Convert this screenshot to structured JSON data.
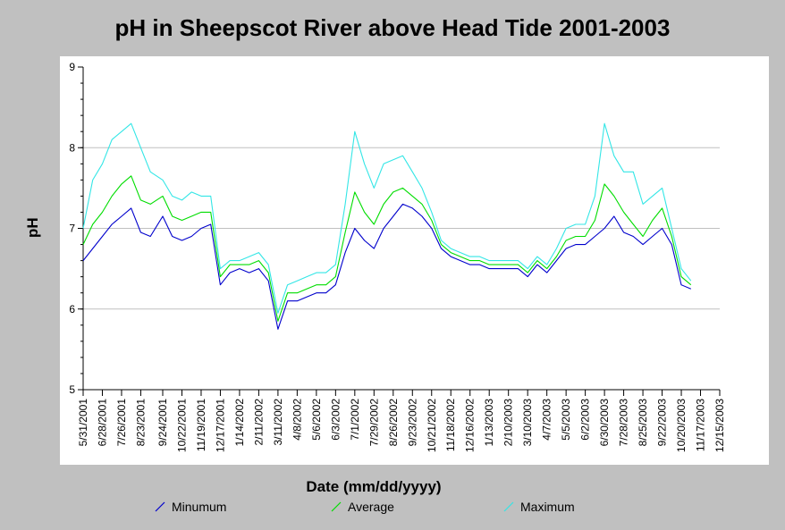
{
  "chart_data": {
    "type": "line",
    "title": "pH in Sheepscot River above Head Tide 2001-2003",
    "xlabel": "Date (mm/dd/yyyy)",
    "ylabel": "pH",
    "ylim": [
      5,
      9
    ],
    "yticks": [
      "5",
      "6",
      "7",
      "8",
      "9"
    ],
    "xlim": [
      "5/31/2001",
      "12/15/2003"
    ],
    "xticks": [
      "5/31/2001",
      "6/28/2001",
      "7/26/2001",
      "8/23/2001",
      "9/24/2001",
      "10/22/2001",
      "11/19/2001",
      "12/17/2001",
      "1/14/2002",
      "2/11/2002",
      "3/11/2002",
      "4/8/2002",
      "5/6/2002",
      "6/3/2002",
      "7/1/2002",
      "7/29/2002",
      "8/26/2002",
      "9/23/2002",
      "10/21/2002",
      "11/18/2002",
      "12/16/2002",
      "1/13/2003",
      "2/10/2003",
      "3/10/2003",
      "4/7/2003",
      "5/5/2003",
      "6/2/2003",
      "6/30/2003",
      "7/28/2003",
      "8/25/2003",
      "9/22/2003",
      "10/20/2003",
      "11/17/2003",
      "12/15/2003"
    ],
    "grid": "horizontal",
    "legend_position": "bottom",
    "series": [
      {
        "name": "Minumum",
        "color": "#0000cc",
        "x": [
          "5/31/2001",
          "6/14/2001",
          "6/28/2001",
          "7/12/2001",
          "7/26/2001",
          "8/9/2001",
          "8/23/2001",
          "9/6/2001",
          "9/24/2001",
          "10/8/2001",
          "10/22/2001",
          "11/5/2001",
          "11/19/2001",
          "12/3/2001",
          "12/17/2001",
          "12/31/2001",
          "1/14/2002",
          "1/28/2002",
          "2/11/2002",
          "2/25/2002",
          "3/11/2002",
          "3/25/2002",
          "4/8/2002",
          "4/22/2002",
          "5/6/2002",
          "5/20/2002",
          "6/3/2002",
          "6/17/2002",
          "7/1/2002",
          "7/15/2002",
          "7/29/2002",
          "8/12/2002",
          "8/26/2002",
          "9/9/2002",
          "9/23/2002",
          "10/7/2002",
          "10/21/2002",
          "11/4/2002",
          "11/18/2002",
          "12/2/2002",
          "12/16/2002",
          "12/30/2002",
          "1/13/2003",
          "1/27/2003",
          "2/10/2003",
          "2/24/2003",
          "3/10/2003",
          "3/24/2003",
          "4/7/2003",
          "4/21/2003",
          "5/5/2003",
          "5/19/2003",
          "6/2/2003",
          "6/16/2003",
          "6/30/2003",
          "7/14/2003",
          "7/28/2003",
          "8/11/2003",
          "8/25/2003",
          "9/8/2003",
          "9/22/2003",
          "10/6/2003",
          "10/20/2003",
          "11/3/2003"
        ],
        "y": [
          6.6,
          6.75,
          6.9,
          7.05,
          7.15,
          7.25,
          6.95,
          6.9,
          7.15,
          6.9,
          6.85,
          6.9,
          7.0,
          7.05,
          6.3,
          6.45,
          6.5,
          6.45,
          6.5,
          6.35,
          5.75,
          6.1,
          6.1,
          6.15,
          6.2,
          6.2,
          6.3,
          6.7,
          7.0,
          6.85,
          6.75,
          7.0,
          7.15,
          7.3,
          7.25,
          7.15,
          7.0,
          6.75,
          6.65,
          6.6,
          6.55,
          6.55,
          6.5,
          6.5,
          6.5,
          6.5,
          6.4,
          6.55,
          6.45,
          6.6,
          6.75,
          6.8,
          6.8,
          6.9,
          7.0,
          7.15,
          6.95,
          6.9,
          6.8,
          6.9,
          7.0,
          6.8,
          6.3,
          6.25
        ]
      },
      {
        "name": "Average",
        "color": "#00dd00",
        "x": [
          "5/31/2001",
          "6/14/2001",
          "6/28/2001",
          "7/12/2001",
          "7/26/2001",
          "8/9/2001",
          "8/23/2001",
          "9/6/2001",
          "9/24/2001",
          "10/8/2001",
          "10/22/2001",
          "11/5/2001",
          "11/19/2001",
          "12/3/2001",
          "12/17/2001",
          "12/31/2001",
          "1/14/2002",
          "1/28/2002",
          "2/11/2002",
          "2/25/2002",
          "3/11/2002",
          "3/25/2002",
          "4/8/2002",
          "4/22/2002",
          "5/6/2002",
          "5/20/2002",
          "6/3/2002",
          "6/17/2002",
          "7/1/2002",
          "7/15/2002",
          "7/29/2002",
          "8/12/2002",
          "8/26/2002",
          "9/9/2002",
          "9/23/2002",
          "10/7/2002",
          "10/21/2002",
          "11/4/2002",
          "11/18/2002",
          "12/2/2002",
          "12/16/2002",
          "12/30/2002",
          "1/13/2003",
          "1/27/2003",
          "2/10/2003",
          "2/24/2003",
          "3/10/2003",
          "3/24/2003",
          "4/7/2003",
          "4/21/2003",
          "5/5/2003",
          "5/19/2003",
          "6/2/2003",
          "6/16/2003",
          "6/30/2003",
          "7/14/2003",
          "7/28/2003",
          "8/11/2003",
          "8/25/2003",
          "9/8/2003",
          "9/22/2003",
          "10/6/2003",
          "10/20/2003",
          "11/3/2003"
        ],
        "y": [
          6.8,
          7.05,
          7.2,
          7.4,
          7.55,
          7.65,
          7.35,
          7.3,
          7.4,
          7.15,
          7.1,
          7.15,
          7.2,
          7.2,
          6.4,
          6.55,
          6.55,
          6.55,
          6.6,
          6.45,
          5.85,
          6.2,
          6.2,
          6.25,
          6.3,
          6.3,
          6.4,
          6.95,
          7.45,
          7.2,
          7.05,
          7.3,
          7.45,
          7.5,
          7.4,
          7.3,
          7.1,
          6.8,
          6.7,
          6.65,
          6.6,
          6.6,
          6.55,
          6.55,
          6.55,
          6.55,
          6.45,
          6.6,
          6.5,
          6.65,
          6.85,
          6.9,
          6.9,
          7.1,
          7.55,
          7.4,
          7.2,
          7.05,
          6.9,
          7.1,
          7.25,
          6.9,
          6.4,
          6.3
        ]
      },
      {
        "name": "Maximum",
        "color": "#33e6e6",
        "x": [
          "5/31/2001",
          "6/14/2001",
          "6/28/2001",
          "7/12/2001",
          "7/26/2001",
          "8/9/2001",
          "8/23/2001",
          "9/6/2001",
          "9/24/2001",
          "10/8/2001",
          "10/22/2001",
          "11/5/2001",
          "11/19/2001",
          "12/3/2001",
          "12/17/2001",
          "12/31/2001",
          "1/14/2002",
          "1/28/2002",
          "2/11/2002",
          "2/25/2002",
          "3/11/2002",
          "3/25/2002",
          "4/8/2002",
          "4/22/2002",
          "5/6/2002",
          "5/20/2002",
          "6/3/2002",
          "6/17/2002",
          "7/1/2002",
          "7/15/2002",
          "7/29/2002",
          "8/12/2002",
          "8/26/2002",
          "9/9/2002",
          "9/23/2002",
          "10/7/2002",
          "10/21/2002",
          "11/4/2002",
          "11/18/2002",
          "12/2/2002",
          "12/16/2002",
          "12/30/2002",
          "1/13/2003",
          "1/27/2003",
          "2/10/2003",
          "2/24/2003",
          "3/10/2003",
          "3/24/2003",
          "4/7/2003",
          "4/21/2003",
          "5/5/2003",
          "5/19/2003",
          "6/2/2003",
          "6/16/2003",
          "6/30/2003",
          "7/14/2003",
          "7/28/2003",
          "8/11/2003",
          "8/25/2003",
          "9/8/2003",
          "9/22/2003",
          "10/6/2003",
          "10/20/2003",
          "11/3/2003"
        ],
        "y": [
          7.0,
          7.6,
          7.8,
          8.1,
          8.2,
          8.3,
          8.0,
          7.7,
          7.6,
          7.4,
          7.35,
          7.45,
          7.4,
          7.4,
          6.5,
          6.6,
          6.6,
          6.65,
          6.7,
          6.55,
          5.95,
          6.3,
          6.35,
          6.4,
          6.45,
          6.45,
          6.55,
          7.3,
          8.2,
          7.8,
          7.5,
          7.8,
          7.85,
          7.9,
          7.7,
          7.5,
          7.2,
          6.85,
          6.75,
          6.7,
          6.65,
          6.65,
          6.6,
          6.6,
          6.6,
          6.6,
          6.5,
          6.65,
          6.55,
          6.75,
          7.0,
          7.05,
          7.05,
          7.4,
          8.3,
          7.9,
          7.7,
          7.7,
          7.3,
          7.4,
          7.5,
          7.0,
          6.5,
          6.35
        ]
      }
    ]
  }
}
